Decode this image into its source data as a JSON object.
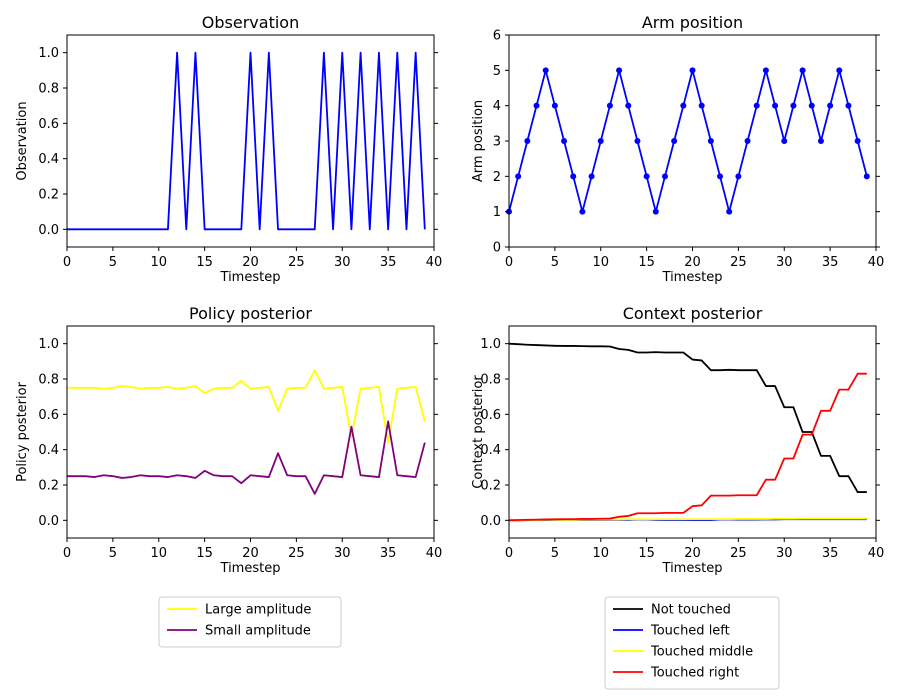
{
  "chart_data": [
    {
      "type": "line",
      "title": "Observation",
      "xlabel": "Timestep",
      "ylabel": "Observation",
      "xlim": [
        0,
        40
      ],
      "ylim": [
        -0.1,
        1.1
      ],
      "xticks": [
        0,
        5,
        10,
        15,
        20,
        25,
        30,
        35,
        40
      ],
      "yticks": [
        0.0,
        0.2,
        0.4,
        0.6,
        0.8,
        1.0
      ],
      "ytick_labels": [
        "0.0",
        "0.2",
        "0.4",
        "0.6",
        "0.8",
        "1.0"
      ],
      "grid": false,
      "series": [
        {
          "color": "#0000ff",
          "markers": false,
          "x": [
            0,
            1,
            2,
            3,
            4,
            5,
            6,
            7,
            8,
            9,
            10,
            11,
            12,
            13,
            14,
            15,
            16,
            17,
            18,
            19,
            20,
            21,
            22,
            23,
            24,
            25,
            26,
            27,
            28,
            29,
            30,
            31,
            32,
            33,
            34,
            35,
            36,
            37,
            38,
            39
          ],
          "y": [
            0,
            0,
            0,
            0,
            0,
            0,
            0,
            0,
            0,
            0,
            0,
            0,
            1,
            0,
            1,
            0,
            0,
            0,
            0,
            0,
            1,
            0,
            1,
            0,
            0,
            0,
            0,
            0,
            1,
            0,
            1,
            0,
            1,
            0,
            1,
            0,
            1,
            0,
            1,
            0
          ]
        }
      ]
    },
    {
      "type": "line",
      "title": "Arm position",
      "xlabel": "Timestep",
      "ylabel": "Arm position",
      "xlim": [
        0,
        40
      ],
      "ylim": [
        0,
        6
      ],
      "xticks": [
        0,
        5,
        10,
        15,
        20,
        25,
        30,
        35,
        40
      ],
      "yticks": [
        0,
        1,
        2,
        3,
        4,
        5,
        6
      ],
      "ytick_labels": [
        "0",
        "1",
        "2",
        "3",
        "4",
        "5",
        "6"
      ],
      "grid": false,
      "series": [
        {
          "color": "#0000ff",
          "markers": true,
          "x": [
            0,
            1,
            2,
            3,
            4,
            5,
            6,
            7,
            8,
            9,
            10,
            11,
            12,
            13,
            14,
            15,
            16,
            17,
            18,
            19,
            20,
            21,
            22,
            23,
            24,
            25,
            26,
            27,
            28,
            29,
            30,
            31,
            32,
            33,
            34,
            35,
            36,
            37,
            38,
            39
          ],
          "y": [
            1,
            2,
            3,
            4,
            5,
            4,
            3,
            2,
            1,
            2,
            3,
            4,
            5,
            4,
            3,
            2,
            1,
            2,
            3,
            4,
            5,
            4,
            3,
            2,
            1,
            2,
            3,
            4,
            5,
            4,
            3,
            4,
            5,
            4,
            3,
            4,
            5,
            4,
            3,
            2
          ]
        }
      ]
    },
    {
      "type": "line",
      "title": "Policy posterior",
      "xlabel": "Timestep",
      "ylabel": "Policy posterior",
      "xlim": [
        0,
        40
      ],
      "ylim": [
        -0.1,
        1.1
      ],
      "xticks": [
        0,
        5,
        10,
        15,
        20,
        25,
        30,
        35,
        40
      ],
      "yticks": [
        0.0,
        0.2,
        0.4,
        0.6,
        0.8,
        1.0
      ],
      "ytick_labels": [
        "0.0",
        "0.2",
        "0.4",
        "0.6",
        "0.8",
        "1.0"
      ],
      "grid": false,
      "legend": "below",
      "series": [
        {
          "name": "Large amplitude",
          "color": "#ffff00",
          "markers": false,
          "x": [
            0,
            1,
            2,
            3,
            4,
            5,
            6,
            7,
            8,
            9,
            10,
            11,
            12,
            13,
            14,
            15,
            16,
            17,
            18,
            19,
            20,
            21,
            22,
            23,
            24,
            25,
            26,
            27,
            28,
            29,
            30,
            31,
            32,
            33,
            34,
            35,
            36,
            37,
            38,
            39
          ],
          "y": [
            0.75,
            0.75,
            0.75,
            0.75,
            0.745,
            0.75,
            0.76,
            0.755,
            0.745,
            0.75,
            0.75,
            0.755,
            0.745,
            0.75,
            0.76,
            0.72,
            0.745,
            0.75,
            0.75,
            0.79,
            0.745,
            0.75,
            0.755,
            0.62,
            0.745,
            0.75,
            0.75,
            0.85,
            0.745,
            0.75,
            0.755,
            0.47,
            0.745,
            0.75,
            0.755,
            0.44,
            0.745,
            0.75,
            0.755,
            0.56
          ]
        },
        {
          "name": "Small amplitude",
          "color": "#800080",
          "markers": false,
          "x": [
            0,
            1,
            2,
            3,
            4,
            5,
            6,
            7,
            8,
            9,
            10,
            11,
            12,
            13,
            14,
            15,
            16,
            17,
            18,
            19,
            20,
            21,
            22,
            23,
            24,
            25,
            26,
            27,
            28,
            29,
            30,
            31,
            32,
            33,
            34,
            35,
            36,
            37,
            38,
            39
          ],
          "y": [
            0.25,
            0.25,
            0.25,
            0.245,
            0.255,
            0.25,
            0.24,
            0.245,
            0.255,
            0.25,
            0.25,
            0.245,
            0.255,
            0.25,
            0.24,
            0.28,
            0.255,
            0.25,
            0.25,
            0.21,
            0.255,
            0.25,
            0.245,
            0.38,
            0.255,
            0.25,
            0.25,
            0.15,
            0.255,
            0.25,
            0.245,
            0.53,
            0.255,
            0.25,
            0.245,
            0.56,
            0.255,
            0.25,
            0.245,
            0.44
          ]
        }
      ]
    },
    {
      "type": "line",
      "title": "Context posterior",
      "xlabel": "Timestep",
      "ylabel": "Context posterior",
      "xlim": [
        0,
        40
      ],
      "ylim": [
        -0.1,
        1.1
      ],
      "xticks": [
        0,
        5,
        10,
        15,
        20,
        25,
        30,
        35,
        40
      ],
      "yticks": [
        0.0,
        0.2,
        0.4,
        0.6,
        0.8,
        1.0
      ],
      "ytick_labels": [
        "0.0",
        "0.2",
        "0.4",
        "0.6",
        "0.8",
        "1.0"
      ],
      "grid": false,
      "legend": "below",
      "series": [
        {
          "name": "Not touched",
          "color": "#000000",
          "markers": false,
          "x": [
            0,
            1,
            2,
            3,
            4,
            5,
            6,
            7,
            8,
            9,
            10,
            11,
            12,
            13,
            14,
            15,
            16,
            17,
            18,
            19,
            20,
            21,
            22,
            23,
            24,
            25,
            26,
            27,
            28,
            29,
            30,
            31,
            32,
            33,
            34,
            35,
            36,
            37,
            38,
            39
          ],
          "y": [
            1.0,
            0.997,
            0.994,
            0.992,
            0.99,
            0.988,
            0.987,
            0.987,
            0.986,
            0.985,
            0.985,
            0.984,
            0.97,
            0.965,
            0.95,
            0.95,
            0.952,
            0.95,
            0.95,
            0.95,
            0.91,
            0.905,
            0.85,
            0.85,
            0.852,
            0.85,
            0.85,
            0.85,
            0.76,
            0.76,
            0.64,
            0.64,
            0.5,
            0.5,
            0.365,
            0.365,
            0.25,
            0.25,
            0.16,
            0.16
          ]
        },
        {
          "name": "Touched left",
          "color": "#0000ff",
          "markers": false,
          "x": [
            0,
            1,
            2,
            3,
            4,
            5,
            6,
            7,
            8,
            9,
            10,
            11,
            12,
            13,
            14,
            15,
            16,
            17,
            18,
            19,
            20,
            21,
            22,
            23,
            24,
            25,
            26,
            27,
            28,
            29,
            30,
            31,
            32,
            33,
            34,
            35,
            36,
            37,
            38,
            39
          ],
          "y": [
            0.0,
            0.0,
            0.001,
            0.001,
            0.001,
            0.001,
            0.002,
            0.002,
            0.002,
            0.002,
            0.002,
            0.003,
            0.003,
            0.003,
            0.005,
            0.005,
            0.003,
            0.002,
            0.002,
            0.002,
            0.002,
            0.002,
            0.002,
            0.005,
            0.005,
            0.004,
            0.004,
            0.004,
            0.005,
            0.005,
            0.006,
            0.006,
            0.006,
            0.006,
            0.006,
            0.006,
            0.006,
            0.006,
            0.006,
            0.006
          ]
        },
        {
          "name": "Touched middle",
          "color": "#ffff00",
          "markers": false,
          "x": [
            0,
            1,
            2,
            3,
            4,
            5,
            6,
            7,
            8,
            9,
            10,
            11,
            12,
            13,
            14,
            15,
            16,
            17,
            18,
            19,
            20,
            21,
            22,
            23,
            24,
            25,
            26,
            27,
            28,
            29,
            30,
            31,
            32,
            33,
            34,
            35,
            36,
            37,
            38,
            39
          ],
          "y": [
            0.0,
            0.001,
            0.002,
            0.002,
            0.003,
            0.003,
            0.003,
            0.003,
            0.004,
            0.004,
            0.004,
            0.005,
            0.005,
            0.006,
            0.006,
            0.006,
            0.006,
            0.006,
            0.006,
            0.006,
            0.007,
            0.007,
            0.007,
            0.007,
            0.007,
            0.008,
            0.008,
            0.008,
            0.008,
            0.009,
            0.009,
            0.009,
            0.01,
            0.01,
            0.01,
            0.01,
            0.01,
            0.01,
            0.01,
            0.01
          ]
        },
        {
          "name": "Touched right",
          "color": "#ff0000",
          "markers": false,
          "x": [
            0,
            1,
            2,
            3,
            4,
            5,
            6,
            7,
            8,
            9,
            10,
            11,
            12,
            13,
            14,
            15,
            16,
            17,
            18,
            19,
            20,
            21,
            22,
            23,
            24,
            25,
            26,
            27,
            28,
            29,
            30,
            31,
            32,
            33,
            34,
            35,
            36,
            37,
            38,
            39
          ],
          "y": [
            0.0,
            0.002,
            0.003,
            0.004,
            0.005,
            0.006,
            0.007,
            0.007,
            0.008,
            0.008,
            0.009,
            0.01,
            0.02,
            0.025,
            0.04,
            0.04,
            0.04,
            0.042,
            0.042,
            0.042,
            0.08,
            0.085,
            0.14,
            0.14,
            0.14,
            0.142,
            0.142,
            0.142,
            0.23,
            0.23,
            0.35,
            0.35,
            0.485,
            0.485,
            0.62,
            0.62,
            0.74,
            0.74,
            0.83,
            0.83
          ]
        }
      ]
    }
  ]
}
